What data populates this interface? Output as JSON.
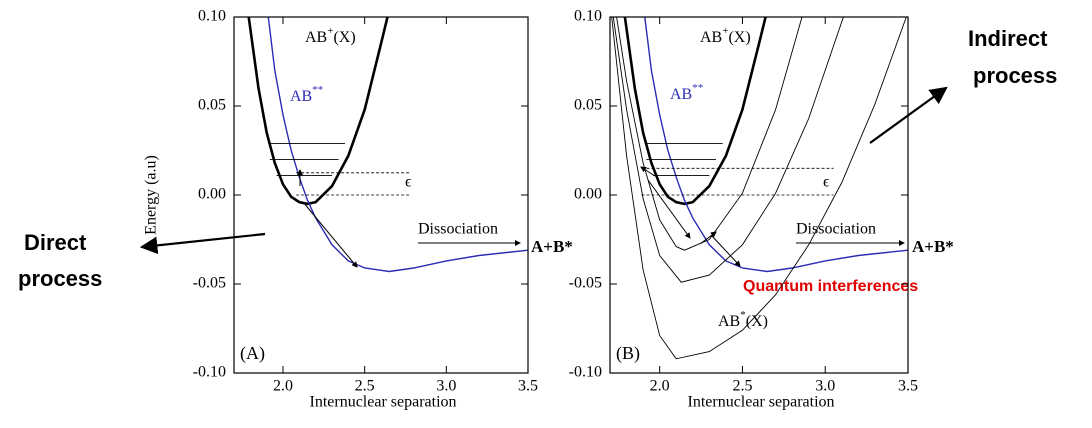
{
  "chart_data": [
    {
      "type": "line",
      "panel_label": "(A)",
      "xlabel": "Internuclear separation",
      "ylabel": "Energy (a.u)",
      "xlim": [
        1.7,
        3.5
      ],
      "ylim": [
        -0.1,
        0.1
      ],
      "xticks": [
        {
          "value": 2,
          "label": "2.0"
        },
        2.5,
        {
          "value": 3,
          "label": "3.0"
        },
        3.5
      ],
      "yticks": [
        {
          "value": -0.1,
          "label": "-0.10"
        },
        -0.05,
        {
          "value": 0,
          "label": "0.00"
        },
        0.05,
        {
          "value": 0.1,
          "label": "0.10"
        }
      ],
      "series": [
        {
          "color": "#000000",
          "width": 2.6,
          "x": [
            1.79,
            1.85,
            1.9,
            1.95,
            2.0,
            2.05,
            2.1,
            2.15,
            2.2,
            2.3,
            2.4,
            2.5,
            2.6,
            2.64
          ],
          "values": [
            0.1,
            0.06,
            0.035,
            0.018,
            0.006,
            -0.001,
            -0.004,
            -0.005,
            -0.004,
            0.005,
            0.022,
            0.048,
            0.085,
            0.1
          ]
        },
        {
          "color": "#2b2bb5",
          "width": 1.4,
          "x": [
            1.91,
            1.95,
            2.0,
            2.05,
            2.1,
            2.15,
            2.2,
            2.3,
            2.4,
            2.5,
            2.65,
            2.8,
            3.0,
            3.2,
            3.5
          ],
          "values": [
            0.1,
            0.07,
            0.045,
            0.025,
            0.01,
            -0.003,
            -0.013,
            -0.028,
            -0.037,
            -0.041,
            -0.043,
            -0.041,
            -0.037,
            -0.034,
            -0.031
          ]
        },
        {
          "color": "#000000",
          "width": 0.9,
          "x": [
            1.91,
            2.38
          ],
          "values": [
            0.029,
            0.029
          ]
        },
        {
          "color": "#000000",
          "width": 0.9,
          "x": [
            1.92,
            2.34
          ],
          "values": [
            0.02,
            0.02
          ]
        },
        {
          "color": "#000000",
          "width": 0.9,
          "x": [
            1.96,
            2.3
          ],
          "values": [
            0.011,
            0.011
          ]
        },
        {
          "color": "#000000",
          "width": 0.8,
          "dash": true,
          "x": [
            2.08,
            2.78
          ],
          "values": [
            0.0125,
            0.0125
          ]
        },
        {
          "color": "#000000",
          "width": 0.8,
          "dash": true,
          "x": [
            2.08,
            2.78
          ],
          "values": [
            0,
            0
          ]
        }
      ],
      "labels": {
        "ion": {
          "text": "AB",
          "sup": "+",
          "after": "(X)"
        },
        "doubly": {
          "text": "AB",
          "sup": "**"
        },
        "epsilon": "ϵ",
        "dissociation": "Dissociation",
        "products": "A+B*"
      }
    },
    {
      "type": "line",
      "panel_label": "(B)",
      "xlabel": "Internuclear separation",
      "xlim": [
        1.7,
        3.5
      ],
      "ylim": [
        -0.1,
        0.1
      ],
      "xticks": [
        {
          "value": 2,
          "label": "2.0"
        },
        2.5,
        {
          "value": 3,
          "label": "3.0"
        },
        3.5
      ],
      "yticks": [
        {
          "value": -0.1,
          "label": "-0.10"
        },
        -0.05,
        {
          "value": 0,
          "label": "0.00"
        },
        0.05,
        {
          "value": 0.1,
          "label": "0.10"
        }
      ],
      "series": [
        {
          "color": "#000000",
          "width": 2.6,
          "x": [
            1.79,
            1.85,
            1.9,
            1.95,
            2.0,
            2.05,
            2.1,
            2.15,
            2.2,
            2.3,
            2.4,
            2.5,
            2.6,
            2.64
          ],
          "values": [
            0.1,
            0.06,
            0.035,
            0.018,
            0.006,
            -0.001,
            -0.004,
            -0.005,
            -0.004,
            0.005,
            0.022,
            0.048,
            0.085,
            0.1
          ]
        },
        {
          "color": "#2b2bb5",
          "width": 1.4,
          "x": [
            1.91,
            1.95,
            2.0,
            2.05,
            2.1,
            2.15,
            2.2,
            2.3,
            2.4,
            2.5,
            2.65,
            2.8,
            3.0,
            3.2,
            3.5
          ],
          "values": [
            0.1,
            0.07,
            0.045,
            0.025,
            0.01,
            -0.003,
            -0.013,
            -0.028,
            -0.037,
            -0.041,
            -0.043,
            -0.041,
            -0.037,
            -0.034,
            -0.031
          ]
        },
        {
          "color": "#000000",
          "width": 0.9,
          "x": [
            1.74,
            1.8,
            1.9,
            2.0,
            2.1,
            2.15,
            2.3,
            2.5,
            2.7,
            2.86
          ],
          "values": [
            0.1,
            0.064,
            0.018,
            -0.014,
            -0.029,
            -0.031,
            -0.025,
            0.001,
            0.048,
            0.1
          ]
        },
        {
          "color": "#000000",
          "width": 0.9,
          "x": [
            1.72,
            1.8,
            1.9,
            2.0,
            2.13,
            2.3,
            2.5,
            2.7,
            2.9,
            3.11
          ],
          "values": [
            0.1,
            0.048,
            -0.002,
            -0.034,
            -0.049,
            -0.045,
            -0.028,
            0.001,
            0.043,
            0.1
          ]
        },
        {
          "color": "#000000",
          "width": 0.9,
          "x": [
            1.71,
            1.8,
            1.9,
            2.0,
            2.1,
            2.3,
            2.5,
            2.7,
            2.9,
            3.1,
            3.3,
            3.49
          ],
          "values": [
            0.1,
            0.022,
            -0.042,
            -0.079,
            -0.092,
            -0.088,
            -0.076,
            -0.056,
            -0.028,
            0.007,
            0.051,
            0.1
          ]
        },
        {
          "color": "#000000",
          "width": 0.9,
          "x": [
            1.91,
            2.38
          ],
          "values": [
            0.029,
            0.029
          ]
        },
        {
          "color": "#000000",
          "width": 0.9,
          "x": [
            1.92,
            2.34
          ],
          "values": [
            0.02,
            0.02
          ]
        },
        {
          "color": "#000000",
          "width": 0.9,
          "x": [
            1.96,
            2.3
          ],
          "values": [
            0.011,
            0.011
          ]
        },
        {
          "color": "#000000",
          "width": 0.8,
          "dash": true,
          "x": [
            1.89,
            3.05
          ],
          "values": [
            0.015,
            0.015
          ]
        },
        {
          "color": "#000000",
          "width": 0.8,
          "dash": true,
          "x": [
            1.89,
            3.05
          ],
          "values": [
            0,
            0
          ]
        }
      ],
      "labels": {
        "ion": {
          "text": "AB",
          "sup": "+",
          "after": "(X)"
        },
        "doubly": {
          "text": "AB",
          "sup": "**"
        },
        "epsilon": "ϵ",
        "dissociation": "Dissociation",
        "products": "A+B*",
        "excited": {
          "text": "AB",
          "sup": "*",
          "after": "(X)"
        }
      }
    }
  ],
  "annotations": {
    "direct": [
      "Direct",
      "process"
    ],
    "indirect": [
      "Indirect",
      "process"
    ],
    "interference": "Quantum interferences"
  }
}
